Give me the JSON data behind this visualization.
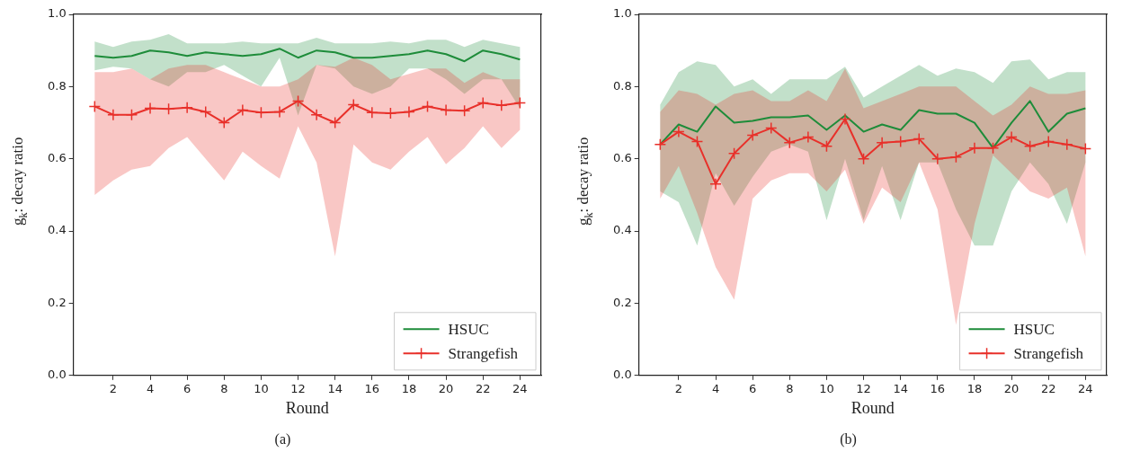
{
  "chart_data": [
    {
      "type": "line",
      "xlabel": "Round",
      "ylabel": "g$_{k}$: decay ratio",
      "x": [
        1,
        2,
        3,
        4,
        5,
        6,
        7,
        8,
        9,
        10,
        11,
        12,
        13,
        14,
        15,
        16,
        17,
        18,
        19,
        20,
        21,
        22,
        23,
        24
      ],
      "xlim": [
        -0.15,
        25.15
      ],
      "xticks": [
        2,
        4,
        6,
        8,
        10,
        12,
        14,
        16,
        18,
        20,
        22,
        24
      ],
      "ylim": [
        0,
        1
      ],
      "yticks": [
        {
          "value": 0,
          "label": "0.0"
        },
        {
          "value": 0.2,
          "label": "0.2"
        },
        {
          "value": 0.4,
          "label": "0.4"
        },
        {
          "value": 0.6,
          "label": "0.6"
        },
        {
          "value": 0.8,
          "label": "0.8"
        },
        {
          "value": 1,
          "label": "1.0"
        }
      ],
      "grid": false,
      "legend": "bottom right",
      "line_style": "solid",
      "annotations": [
        "(a)"
      ],
      "series": [
        {
          "name": "HSUC",
          "color": "#1e8c3a",
          "marker": "none",
          "values": [
            0.885,
            0.88,
            0.885,
            0.9,
            0.895,
            0.885,
            0.895,
            0.89,
            0.885,
            0.89,
            0.905,
            0.88,
            0.9,
            0.895,
            0.88,
            0.88,
            0.885,
            0.89,
            0.9,
            0.89,
            0.87,
            0.9,
            0.89,
            0.875
          ],
          "upper": [
            0.925,
            0.91,
            0.925,
            0.93,
            0.945,
            0.92,
            0.92,
            0.92,
            0.925,
            0.92,
            0.92,
            0.92,
            0.935,
            0.92,
            0.92,
            0.92,
            0.925,
            0.92,
            0.93,
            0.93,
            0.91,
            0.93,
            0.92,
            0.91
          ],
          "lower": [
            0.845,
            0.855,
            0.85,
            0.82,
            0.8,
            0.84,
            0.84,
            0.86,
            0.83,
            0.8,
            0.88,
            0.72,
            0.86,
            0.85,
            0.8,
            0.78,
            0.8,
            0.85,
            0.85,
            0.82,
            0.78,
            0.82,
            0.82,
            0.74
          ]
        },
        {
          "name": "Strangefish",
          "color": "#e8302a",
          "marker": "cross",
          "values": [
            0.745,
            0.722,
            0.722,
            0.74,
            0.738,
            0.742,
            0.73,
            0.7,
            0.735,
            0.728,
            0.73,
            0.76,
            0.722,
            0.7,
            0.75,
            0.728,
            0.726,
            0.73,
            0.745,
            0.735,
            0.733,
            0.755,
            0.748,
            0.755
          ],
          "upper": [
            0.84,
            0.84,
            0.85,
            0.82,
            0.85,
            0.86,
            0.86,
            0.84,
            0.82,
            0.8,
            0.8,
            0.82,
            0.86,
            0.855,
            0.88,
            0.86,
            0.82,
            0.835,
            0.85,
            0.85,
            0.81,
            0.84,
            0.82,
            0.82
          ],
          "lower": [
            0.5,
            0.54,
            0.57,
            0.58,
            0.63,
            0.66,
            0.6,
            0.54,
            0.62,
            0.58,
            0.545,
            0.69,
            0.59,
            0.33,
            0.64,
            0.59,
            0.57,
            0.62,
            0.66,
            0.585,
            0.63,
            0.69,
            0.63,
            0.68
          ]
        }
      ]
    },
    {
      "type": "line",
      "xlabel": "Round",
      "ylabel": "g$_{k}$: decay ratio",
      "x": [
        1,
        2,
        3,
        4,
        5,
        6,
        7,
        8,
        9,
        10,
        11,
        12,
        13,
        14,
        15,
        16,
        17,
        18,
        19,
        20,
        21,
        22,
        23,
        24
      ],
      "xlim": [
        -0.15,
        25.15
      ],
      "xticks": [
        2,
        4,
        6,
        8,
        10,
        12,
        14,
        16,
        18,
        20,
        22,
        24
      ],
      "ylim": [
        0,
        1
      ],
      "yticks": [
        {
          "value": 0,
          "label": "0.0"
        },
        {
          "value": 0.2,
          "label": "0.2"
        },
        {
          "value": 0.4,
          "label": "0.4"
        },
        {
          "value": 0.6,
          "label": "0.6"
        },
        {
          "value": 0.8,
          "label": "0.8"
        },
        {
          "value": 1,
          "label": "1.0"
        }
      ],
      "grid": false,
      "legend": "bottom right",
      "line_style": "solid",
      "annotations": [
        "(b)"
      ],
      "series": [
        {
          "name": "HSUC",
          "color": "#1e8c3a",
          "marker": "none",
          "values": [
            0.64,
            0.695,
            0.675,
            0.745,
            0.7,
            0.705,
            0.715,
            0.715,
            0.72,
            0.68,
            0.72,
            0.675,
            0.695,
            0.68,
            0.735,
            0.725,
            0.725,
            0.7,
            0.63,
            0.7,
            0.76,
            0.675,
            0.725,
            0.74
          ],
          "upper": [
            0.75,
            0.84,
            0.87,
            0.86,
            0.8,
            0.82,
            0.78,
            0.82,
            0.82,
            0.82,
            0.855,
            0.77,
            0.8,
            0.83,
            0.86,
            0.83,
            0.85,
            0.84,
            0.81,
            0.87,
            0.875,
            0.82,
            0.84,
            0.84
          ],
          "lower": [
            0.51,
            0.48,
            0.36,
            0.56,
            0.47,
            0.55,
            0.62,
            0.64,
            0.62,
            0.43,
            0.6,
            0.43,
            0.58,
            0.43,
            0.59,
            0.59,
            0.46,
            0.36,
            0.36,
            0.51,
            0.59,
            0.53,
            0.42,
            0.59
          ]
        },
        {
          "name": "Strangefish",
          "color": "#e8302a",
          "marker": "cross",
          "values": [
            0.64,
            0.675,
            0.648,
            0.53,
            0.615,
            0.665,
            0.685,
            0.645,
            0.66,
            0.635,
            0.71,
            0.6,
            0.645,
            0.648,
            0.655,
            0.6,
            0.605,
            0.63,
            0.63,
            0.66,
            0.635,
            0.648,
            0.64,
            0.628
          ],
          "upper": [
            0.73,
            0.79,
            0.78,
            0.75,
            0.78,
            0.79,
            0.76,
            0.76,
            0.79,
            0.76,
            0.85,
            0.74,
            0.76,
            0.78,
            0.8,
            0.8,
            0.8,
            0.76,
            0.72,
            0.75,
            0.8,
            0.78,
            0.78,
            0.79
          ],
          "lower": [
            0.49,
            0.58,
            0.45,
            0.3,
            0.21,
            0.49,
            0.54,
            0.56,
            0.56,
            0.51,
            0.57,
            0.42,
            0.52,
            0.48,
            0.59,
            0.46,
            0.14,
            0.42,
            0.61,
            0.56,
            0.51,
            0.49,
            0.52,
            0.33
          ]
        }
      ]
    }
  ]
}
